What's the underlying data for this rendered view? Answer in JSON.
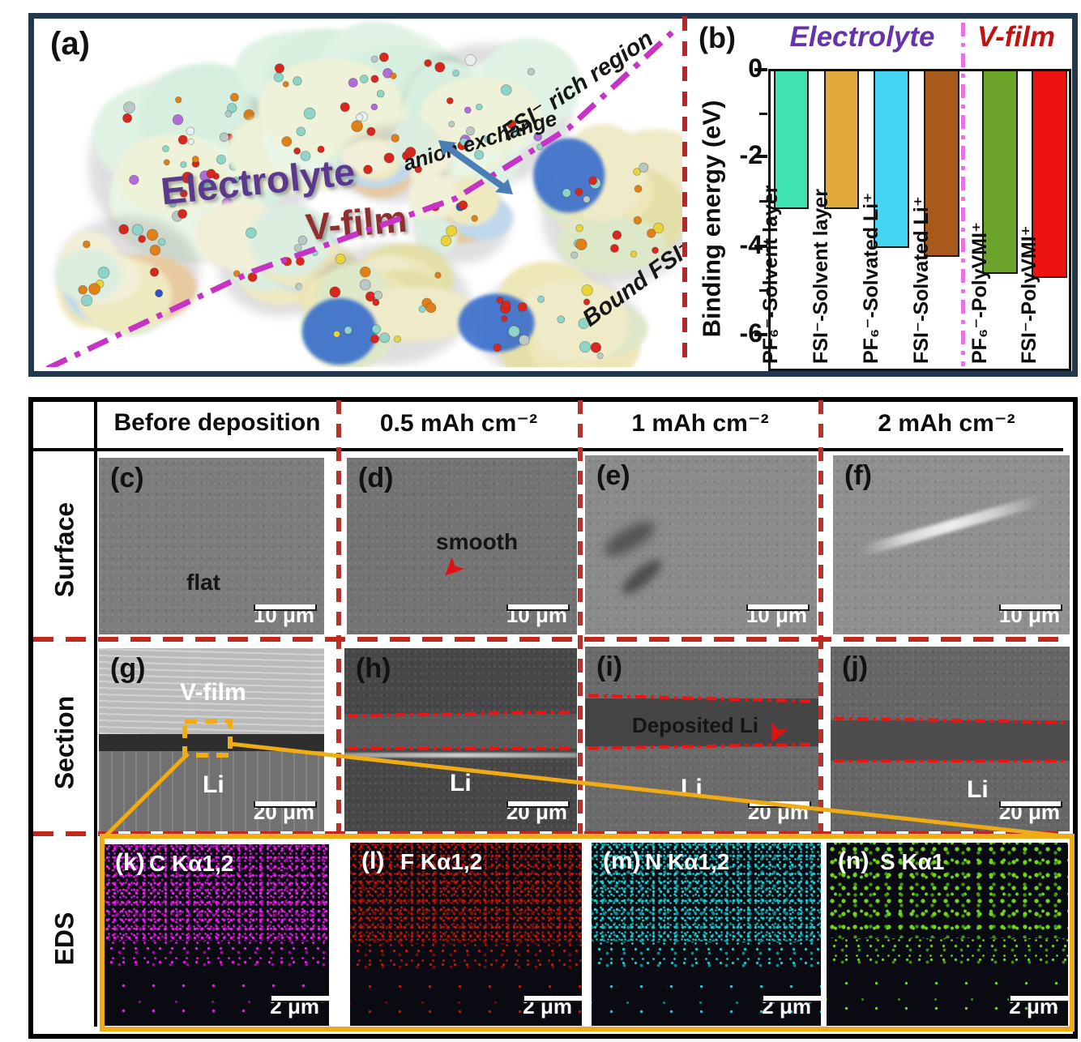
{
  "figure": {
    "panel_a": {
      "tag": "(a)",
      "electrolyte_label": "Electrolyte",
      "vfilm_label": "V-film",
      "anion_exchange": "anion exchange",
      "fsi_rich_region": "FSI⁻ rich region",
      "bound_fsi": "Bound FSI⁻",
      "colors": {
        "electrolyte_text": "#5B3A8E",
        "vfilm_text": "#8E3030",
        "boundary_line": "#C733C7",
        "exchange_arrow": "#4A7FB5"
      }
    },
    "panel_b": {
      "tag": "(b)",
      "group_electrolyte": "Electrolyte",
      "group_vfilm": "V-film",
      "group_electrolyte_color": "#6633AA",
      "group_vfilm_color": "#C11212",
      "divider_color": "#E473E4"
    }
  },
  "chart_data": {
    "type": "bar",
    "title": "",
    "xlabel": "",
    "ylabel": "Binding energy (eV)",
    "ylim": [
      0,
      -6.9
    ],
    "yticks": [
      0,
      -2,
      -4,
      -6
    ],
    "ytick_labels": [
      "0",
      "-2",
      "-4",
      "-6"
    ],
    "grid": false,
    "legend_position": "none",
    "categories": [
      "PF₆⁻-Solvent layer",
      "FSI⁻-Solvent layer",
      "PF₆⁻-Solvated Li⁺",
      "FSI⁻-Solvated Li⁺",
      "PF₆⁻-PolyVMI⁺",
      "FSI⁻-PolyVMI⁺"
    ],
    "values": [
      -3.2,
      -3.2,
      -4.1,
      -4.3,
      -4.7,
      -4.8
    ],
    "bar_colors": [
      "#3FE3B1",
      "#E2A93C",
      "#45D5F2",
      "#A85A1C",
      "#6CA32B",
      "#EE1313"
    ],
    "groups": [
      {
        "name": "Electrolyte",
        "bar_indices": [
          0,
          1,
          2,
          3
        ]
      },
      {
        "name": "V-film",
        "bar_indices": [
          4,
          5
        ]
      }
    ],
    "divider_after_index": 3
  },
  "table": {
    "col_headers": [
      "Before deposition",
      "0.5 mAh cm⁻²",
      "1 mAh cm⁻²",
      "2 mAh cm⁻²"
    ],
    "row_headers": [
      "Surface",
      "Section",
      "EDS"
    ],
    "cells": [
      {
        "tag": "(c)",
        "note": "flat",
        "scale": "10 μm"
      },
      {
        "tag": "(d)",
        "note": "smooth",
        "scale": "10 μm"
      },
      {
        "tag": "(e)",
        "scale": "10 μm"
      },
      {
        "tag": "(f)",
        "scale": "10 μm"
      },
      {
        "tag": "(g)",
        "vfilm": "V-film",
        "li": "Li",
        "scale": "20 μm"
      },
      {
        "tag": "(h)",
        "li": "Li",
        "scale": "20 μm"
      },
      {
        "tag": "(i)",
        "deposited": "Deposited Li",
        "li": "Li",
        "scale": "20 μm"
      },
      {
        "tag": "(j)",
        "li": "Li",
        "scale": "20 μm"
      },
      {
        "tag": "(k)",
        "element": "C Kα1,2",
        "scale": "2 μm",
        "color": "#F318F3",
        "color2": "#9C0D9C"
      },
      {
        "tag": "(l)",
        "element": "F Kα1,2",
        "scale": "2 μm",
        "color": "#C41507",
        "color2": "#7A0D04"
      },
      {
        "tag": "(m)",
        "element": "N Kα1,2",
        "scale": "2 μm",
        "color": "#17CFCF",
        "color2": "#0B8F96"
      },
      {
        "tag": "(n)",
        "element": "S Kα1",
        "scale": "2 μm",
        "color": "#6FD41A",
        "color2": "#3F9410"
      }
    ],
    "callout_color": "#EFAC15"
  }
}
